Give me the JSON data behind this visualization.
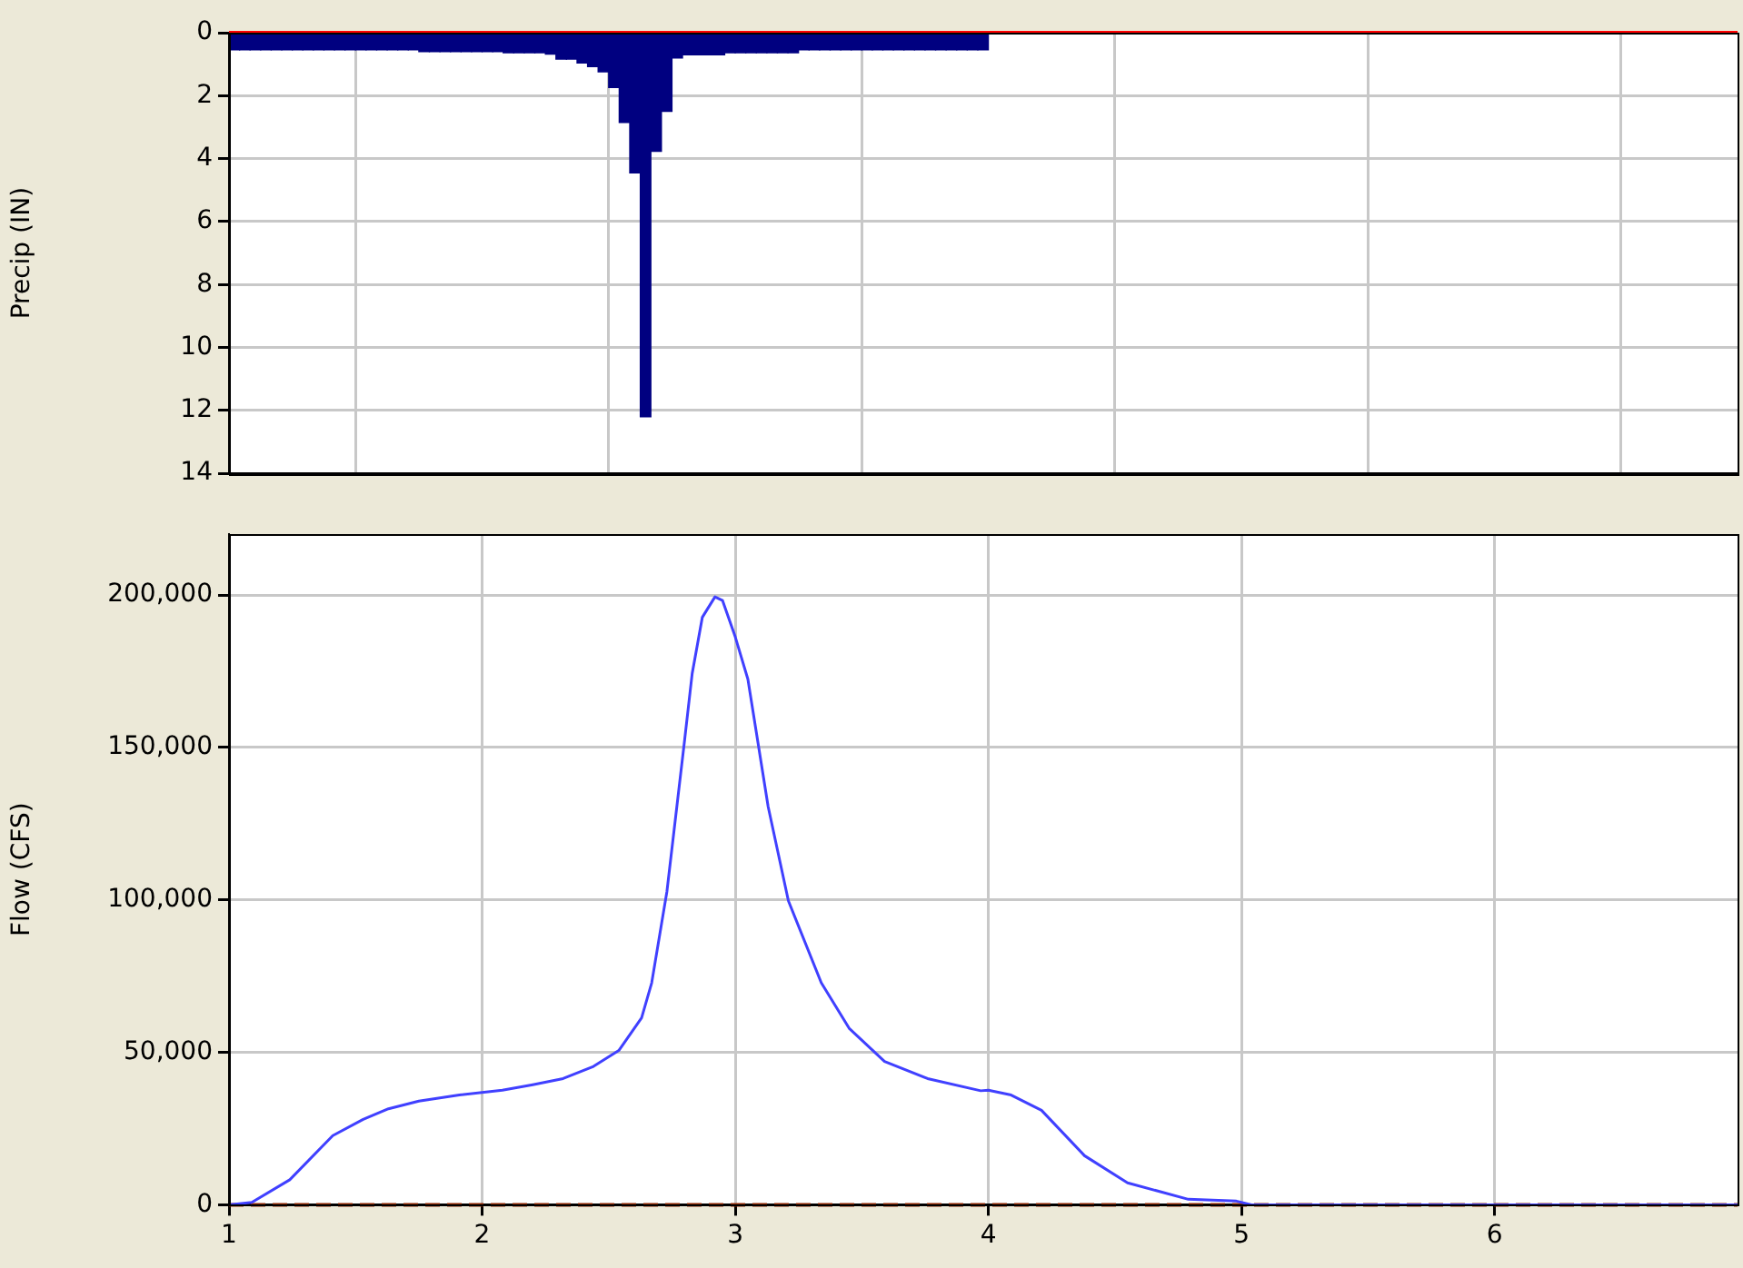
{
  "chart_data": [
    {
      "type": "histogram",
      "ylabel": "Precip (IN)",
      "color": "#000080",
      "xlim": [
        1,
        6.96
      ],
      "xticks": [
        1,
        2,
        3,
        4,
        5,
        6
      ],
      "ylim": [
        14,
        0
      ],
      "yticks": [
        0,
        2,
        4,
        6,
        8,
        10,
        12,
        14
      ],
      "grid": true,
      "tick_labels": "y",
      "bins": [
        1,
        1.0417,
        1.0833,
        1.125,
        1.1667,
        1.2083,
        1.25,
        1.2917,
        1.3333,
        1.375,
        1.4167,
        1.4583,
        1.5,
        1.5417,
        1.5833,
        1.625,
        1.6667,
        1.7083,
        1.75,
        1.7917,
        1.8333,
        1.875,
        1.9167,
        1.9583,
        2,
        2.0417,
        2.0833,
        2.125,
        2.1667,
        2.2083,
        2.25,
        2.2917,
        2.3333,
        2.375,
        2.4167,
        2.4583,
        2.5,
        2.5417,
        2.5833,
        2.625,
        2.6667,
        2.7083,
        2.75,
        2.7917,
        2.8333,
        2.875,
        2.9167,
        2.9583,
        3,
        3.0417,
        3.0833,
        3.125,
        3.1667,
        3.2083,
        3.25,
        3.2917,
        3.3333,
        3.375,
        3.4167,
        3.4583,
        3.5,
        3.5417,
        3.5833,
        3.625,
        3.6667,
        3.7083,
        3.75,
        3.7917,
        3.8333,
        3.875,
        3.9167,
        3.9583,
        4
      ],
      "values": [
        0.54,
        0.54,
        0.54,
        0.54,
        0.54,
        0.54,
        0.54,
        0.54,
        0.54,
        0.54,
        0.54,
        0.54,
        0.54,
        0.54,
        0.54,
        0.54,
        0.54,
        0.54,
        0.6,
        0.6,
        0.6,
        0.6,
        0.6,
        0.6,
        0.6,
        0.6,
        0.64,
        0.64,
        0.64,
        0.64,
        0.68,
        0.84,
        0.84,
        0.96,
        1.08,
        1.24,
        1.74,
        2.85,
        4.45,
        12.2,
        3.77,
        2.5,
        0.8,
        0.7,
        0.7,
        0.7,
        0.7,
        0.64,
        0.64,
        0.64,
        0.64,
        0.64,
        0.64,
        0.64,
        0.54,
        0.54,
        0.54,
        0.54,
        0.54,
        0.54,
        0.54,
        0.54,
        0.54,
        0.54,
        0.54,
        0.54,
        0.54,
        0.54,
        0.54,
        0.54,
        0.54,
        0.54
      ],
      "ref_lines": [
        {
          "axis": "y",
          "value": 0,
          "color": "#ff0000"
        }
      ]
    },
    {
      "type": "line",
      "ylabel": "Flow (CFS)",
      "xlim": [
        1,
        6.96
      ],
      "xticks": [
        1,
        2,
        3,
        4,
        5,
        6
      ],
      "ylim": [
        0,
        220000
      ],
      "yticks": [
        0,
        {
          "value": 50000,
          "label": "50,000"
        },
        {
          "value": 100000,
          "label": "100,000"
        },
        {
          "value": 150000,
          "label": "150,000"
        },
        {
          "value": 200000,
          "label": "200,000"
        }
      ],
      "grid": true,
      "marker": "none",
      "series": [
        {
          "color": "#4040ff",
          "x": [
            1,
            1.09,
            1.24,
            1.41,
            1.53,
            1.63,
            1.75,
            1.91,
            2.08,
            2.2,
            2.32,
            2.44,
            2.54,
            2.63,
            2.67,
            2.73,
            2.8,
            2.83,
            2.87,
            2.92,
            2.95,
            3,
            3.05,
            3.13,
            3.21,
            3.34,
            3.45,
            3.59,
            3.76,
            3.97,
            4,
            4.09,
            4.21,
            4.38,
            4.55,
            4.79,
            4.98,
            5.04,
            6.96
          ],
          "values": [
            0,
            800,
            8200,
            22700,
            28000,
            31500,
            34000,
            36000,
            37600,
            39400,
            41400,
            45400,
            50600,
            61300,
            72800,
            102700,
            152400,
            174300,
            192700,
            199400,
            198200,
            186300,
            172400,
            130600,
            99700,
            72800,
            57900,
            47000,
            41400,
            37400,
            37600,
            36000,
            31000,
            16100,
            7200,
            1800,
            1200,
            0,
            0
          ]
        }
      ],
      "ref_lines": [
        {
          "axis": "y",
          "value": 0,
          "color": "#8b2500",
          "line_style": "dashed"
        }
      ]
    }
  ]
}
